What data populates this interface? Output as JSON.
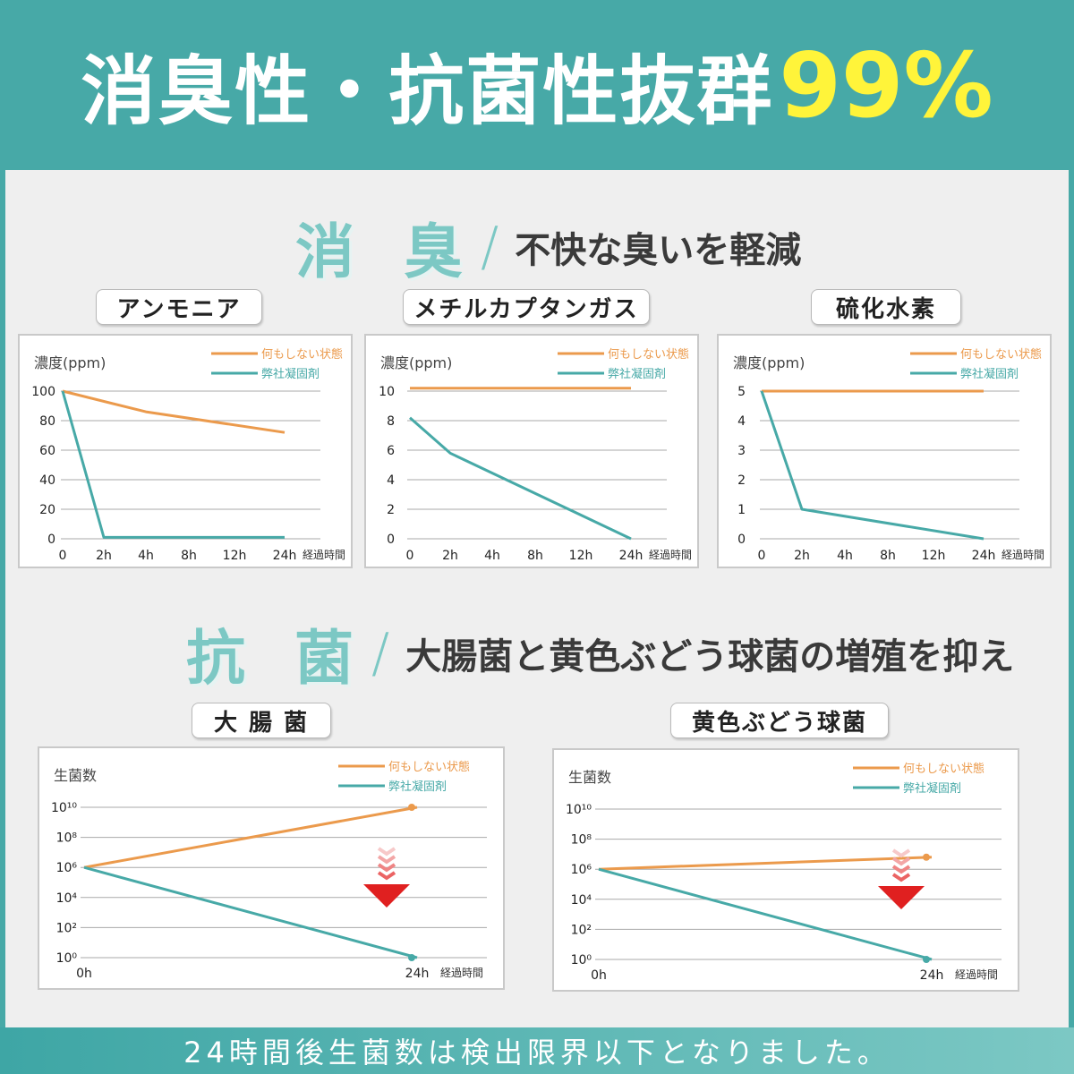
{
  "header": {
    "title": "消臭性・抗菌性抜群",
    "highlight": "99%"
  },
  "deodorize": {
    "title": "消 臭",
    "subtitle": "不快な臭いを軽減"
  },
  "antibacterial": {
    "title": "抗 菌",
    "subtitle": "大腸菌と黄色ぶどう球菌の増殖を抑え"
  },
  "footer": {
    "text": "24時間後生菌数は検出限界以下となりました。"
  },
  "colors": {
    "teal": "#47a9a7",
    "orange": "#eb9a4c",
    "highlight": "#fff43a",
    "arrow": "#e02020"
  },
  "chart_data": [
    {
      "type": "line",
      "title": "アンモニア",
      "ylabel": "濃度(ppm)",
      "xlabel": "経過時間",
      "x": [
        "0",
        "2h",
        "4h",
        "8h",
        "12h",
        "24h"
      ],
      "y_ticks": [
        "0",
        "20",
        "40",
        "60",
        "80",
        "100"
      ],
      "ylim": [
        0,
        100
      ],
      "series": [
        {
          "name": "何もしない状態",
          "color": "#eb9a4c",
          "points": [
            [
              0,
              100
            ],
            [
              2,
              86
            ],
            [
              5,
              72
            ]
          ]
        },
        {
          "name": "弊社凝固剤",
          "color": "#47a9a7",
          "points": [
            [
              0,
              100
            ],
            [
              1,
              1
            ],
            [
              5,
              1
            ]
          ]
        }
      ]
    },
    {
      "type": "line",
      "title": "メチルカプタンガス",
      "ylabel": "濃度(ppm)",
      "xlabel": "経過時間",
      "x": [
        "0",
        "2h",
        "4h",
        "8h",
        "12h",
        "24h"
      ],
      "y_ticks": [
        "0",
        "2",
        "4",
        "6",
        "8",
        "10"
      ],
      "ylim": [
        0,
        10
      ],
      "series": [
        {
          "name": "何もしない状態",
          "color": "#eb9a4c",
          "points": [
            [
              0,
              10.2
            ],
            [
              5,
              10.2
            ]
          ]
        },
        {
          "name": "弊社凝固剤",
          "color": "#47a9a7",
          "points": [
            [
              0,
              8.2
            ],
            [
              1,
              5.8
            ],
            [
              5,
              0
            ]
          ]
        }
      ]
    },
    {
      "type": "line",
      "title": "硫化水素",
      "ylabel": "濃度(ppm)",
      "xlabel": "経過時間",
      "x": [
        "0",
        "2h",
        "4h",
        "8h",
        "12h",
        "24h"
      ],
      "y_ticks": [
        "0",
        "1",
        "2",
        "3",
        "4",
        "5"
      ],
      "ylim": [
        0,
        5
      ],
      "series": [
        {
          "name": "何もしない状態",
          "color": "#eb9a4c",
          "points": [
            [
              0,
              5
            ],
            [
              5,
              5
            ]
          ]
        },
        {
          "name": "弊社凝固剤",
          "color": "#47a9a7",
          "points": [
            [
              0,
              5
            ],
            [
              1,
              1
            ],
            [
              5,
              0
            ]
          ]
        }
      ]
    },
    {
      "type": "line",
      "title": "大 腸 菌",
      "ylabel": "生菌数",
      "xlabel": "経過時間",
      "x": [
        "0h",
        "24h"
      ],
      "y_ticks": [
        "10⁰",
        "10²",
        "10⁴",
        "10⁶",
        "10⁸",
        "10¹⁰"
      ],
      "ylim": [
        0,
        10
      ],
      "y_scale": "log",
      "series": [
        {
          "name": "何もしない状態",
          "color": "#eb9a4c",
          "points": [
            [
              0,
              6
            ],
            [
              1,
              10
            ]
          ]
        },
        {
          "name": "弊社凝固剤",
          "color": "#47a9a7",
          "points": [
            [
              0,
              6
            ],
            [
              1,
              0
            ]
          ]
        }
      ],
      "decrease_arrow": true
    },
    {
      "type": "line",
      "title": "黄色ぶどう球菌",
      "ylabel": "生菌数",
      "xlabel": "経過時間",
      "x": [
        "0h",
        "24h"
      ],
      "y_ticks": [
        "10⁰",
        "10²",
        "10⁴",
        "10⁶",
        "10⁸",
        "10¹⁰"
      ],
      "ylim": [
        0,
        10
      ],
      "y_scale": "log",
      "series": [
        {
          "name": "何もしない状態",
          "color": "#eb9a4c",
          "points": [
            [
              0,
              6
            ],
            [
              1,
              6.8
            ]
          ]
        },
        {
          "name": "弊社凝固剤",
          "color": "#47a9a7",
          "points": [
            [
              0,
              6
            ],
            [
              1,
              0
            ]
          ]
        }
      ],
      "decrease_arrow": true
    }
  ]
}
